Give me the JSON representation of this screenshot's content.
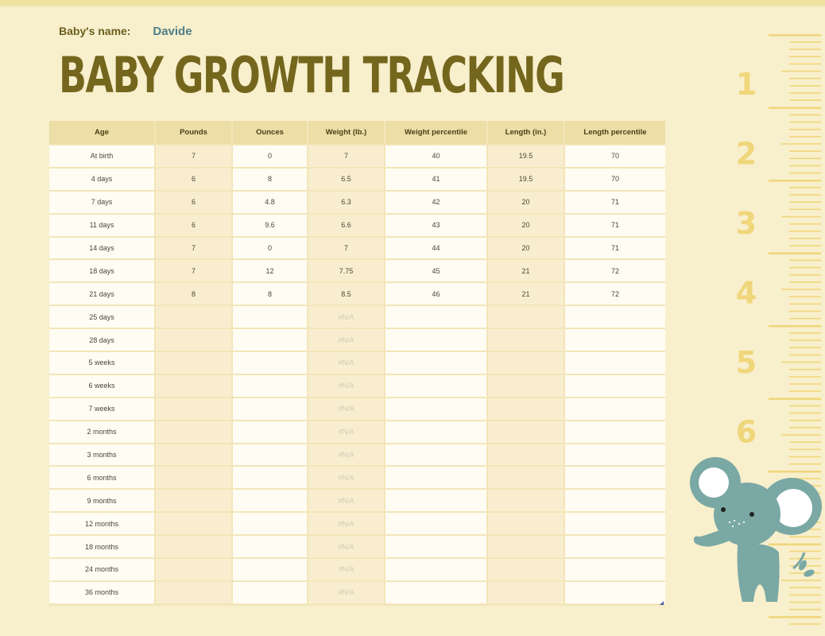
{
  "header": {
    "baby_name_label": "Baby's name:",
    "baby_name_value": "Davide",
    "title": "BABY GROWTH TRACKING"
  },
  "table": {
    "columns": [
      "Age",
      "Pounds",
      "Ounces",
      "Weight (lb.)",
      "Weight percentile",
      "Length (in.)",
      "Length percentile"
    ],
    "rows": [
      [
        "At birth",
        "7",
        "0",
        "7",
        "40",
        "19.5",
        "70"
      ],
      [
        "4 days",
        "6",
        "8",
        "6.5",
        "41",
        "19.5",
        "70"
      ],
      [
        "7 days",
        "6",
        "4.8",
        "6.3",
        "42",
        "20",
        "71"
      ],
      [
        "11 days",
        "6",
        "9.6",
        "6.6",
        "43",
        "20",
        "71"
      ],
      [
        "14 days",
        "7",
        "0",
        "7",
        "44",
        "20",
        "71"
      ],
      [
        "18 days",
        "7",
        "12",
        "7.75",
        "45",
        "21",
        "72"
      ],
      [
        "21 days",
        "8",
        "8",
        "8.5",
        "46",
        "21",
        "72"
      ],
      [
        "25 days",
        "",
        "",
        "#N/A",
        "",
        "",
        ""
      ],
      [
        "28 days",
        "",
        "",
        "#N/A",
        "",
        "",
        ""
      ],
      [
        "5 weeks",
        "",
        "",
        "#N/A",
        "",
        "",
        ""
      ],
      [
        "6 weeks",
        "",
        "",
        "#N/A",
        "",
        "",
        ""
      ],
      [
        "7 weeks",
        "",
        "",
        "#N/A",
        "",
        "",
        ""
      ],
      [
        "2 months",
        "",
        "",
        "#N/A",
        "",
        "",
        ""
      ],
      [
        "3 months",
        "",
        "",
        "#N/A",
        "",
        "",
        ""
      ],
      [
        "6 months",
        "",
        "",
        "#N/A",
        "",
        "",
        ""
      ],
      [
        "9 months",
        "",
        "",
        "#N/A",
        "",
        "",
        ""
      ],
      [
        "12 months",
        "",
        "",
        "#N/A",
        "",
        "",
        ""
      ],
      [
        "18 months",
        "",
        "",
        "#N/A",
        "",
        "",
        ""
      ],
      [
        "24 months",
        "",
        "",
        "#N/A",
        "",
        "",
        ""
      ],
      [
        "36 months",
        "",
        "",
        "#N/A",
        "",
        "",
        ""
      ]
    ]
  },
  "ruler": {
    "numbers": [
      "1",
      "2",
      "3",
      "4",
      "5",
      "6"
    ],
    "color": "#f0d67a"
  },
  "decoration": {
    "elephant_icon": "elephant-illustration",
    "elephant_color": "#7aa8a4"
  },
  "colors": {
    "background": "#f8efcc",
    "title": "#74661d",
    "header_cell": "#ecdea6",
    "cell_white": "#fffdf3",
    "cell_yellow": "#f8eecf"
  }
}
